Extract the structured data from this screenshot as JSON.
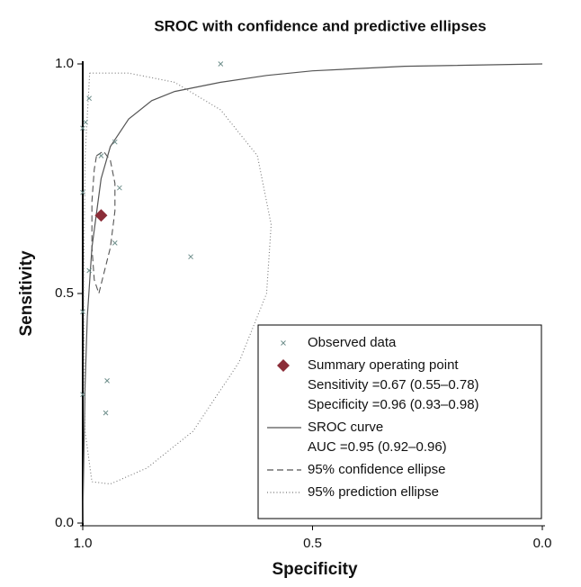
{
  "chart_data": {
    "type": "sroc",
    "title": "SROC with confidence and predictive ellipses",
    "x_label": "Specificity",
    "y_label": "Sensitivity",
    "xlim": [
      1,
      0
    ],
    "ylim": [
      0,
      1
    ],
    "xticks": [
      {
        "value": 1,
        "label": "1.0"
      },
      {
        "value": 0.5,
        "label": "0.5"
      },
      {
        "value": 0,
        "label": "0.0"
      }
    ],
    "yticks": [
      {
        "value": 0,
        "label": "0.0"
      },
      {
        "value": 0.5,
        "label": "0.5"
      },
      {
        "value": 1,
        "label": "1.0"
      }
    ],
    "legend": "lower right",
    "series": [
      {
        "name": "Observed data",
        "style": "cross",
        "color": "#6f8f8c",
        "x": [
          0.7,
          0.986,
          0.994,
          1.0,
          0.93,
          0.96,
          0.92,
          1.0,
          0.93,
          0.765,
          0.986,
          1.0,
          0.947,
          0.95,
          1.0
        ],
        "values": [
          1.0,
          0.925,
          0.873,
          0.86,
          0.83,
          0.8,
          0.73,
          0.72,
          0.61,
          0.58,
          0.55,
          0.46,
          0.31,
          0.24,
          0.28
        ]
      },
      {
        "name": "Summary operating point",
        "style": "diamond",
        "color": "#8b2d38",
        "details": [
          "Sensitivity =0.67 (0.55–0.78)",
          "Specificity =0.96 (0.93–0.98)"
        ],
        "x": [
          0.96
        ],
        "values": [
          0.67
        ]
      },
      {
        "name": "SROC curve",
        "style": "solid",
        "color": "#555555",
        "details": [
          "AUC =0.95 (0.92–0.96)"
        ],
        "x": [
          1.0,
          0.995,
          0.99,
          0.98,
          0.96,
          0.94,
          0.9,
          0.85,
          0.8,
          0.7,
          0.6,
          0.5,
          0.3,
          0.0
        ],
        "values": [
          0.0,
          0.3,
          0.45,
          0.6,
          0.75,
          0.82,
          0.88,
          0.92,
          0.94,
          0.96,
          0.975,
          0.985,
          0.995,
          1.0
        ]
      },
      {
        "name": "95% confidence ellipse",
        "style": "dashed",
        "color": "#555555",
        "x": [
          0.97,
          0.955,
          0.94,
          0.93,
          0.93,
          0.94,
          0.955,
          0.965,
          0.975,
          0.98,
          0.98,
          0.975,
          0.97
        ],
        "values": [
          0.8,
          0.81,
          0.79,
          0.74,
          0.68,
          0.6,
          0.54,
          0.5,
          0.53,
          0.6,
          0.7,
          0.77,
          0.8
        ]
      },
      {
        "name": "95% prediction ellipse",
        "style": "dotted",
        "color": "#777777",
        "x": [
          0.985,
          0.9,
          0.8,
          0.7,
          0.62,
          0.59,
          0.6,
          0.66,
          0.76,
          0.86,
          0.94,
          0.98,
          0.995,
          0.998,
          0.995,
          0.985
        ],
        "values": [
          0.98,
          0.98,
          0.96,
          0.9,
          0.8,
          0.65,
          0.5,
          0.35,
          0.2,
          0.12,
          0.085,
          0.09,
          0.2,
          0.5,
          0.8,
          0.98
        ]
      }
    ]
  }
}
